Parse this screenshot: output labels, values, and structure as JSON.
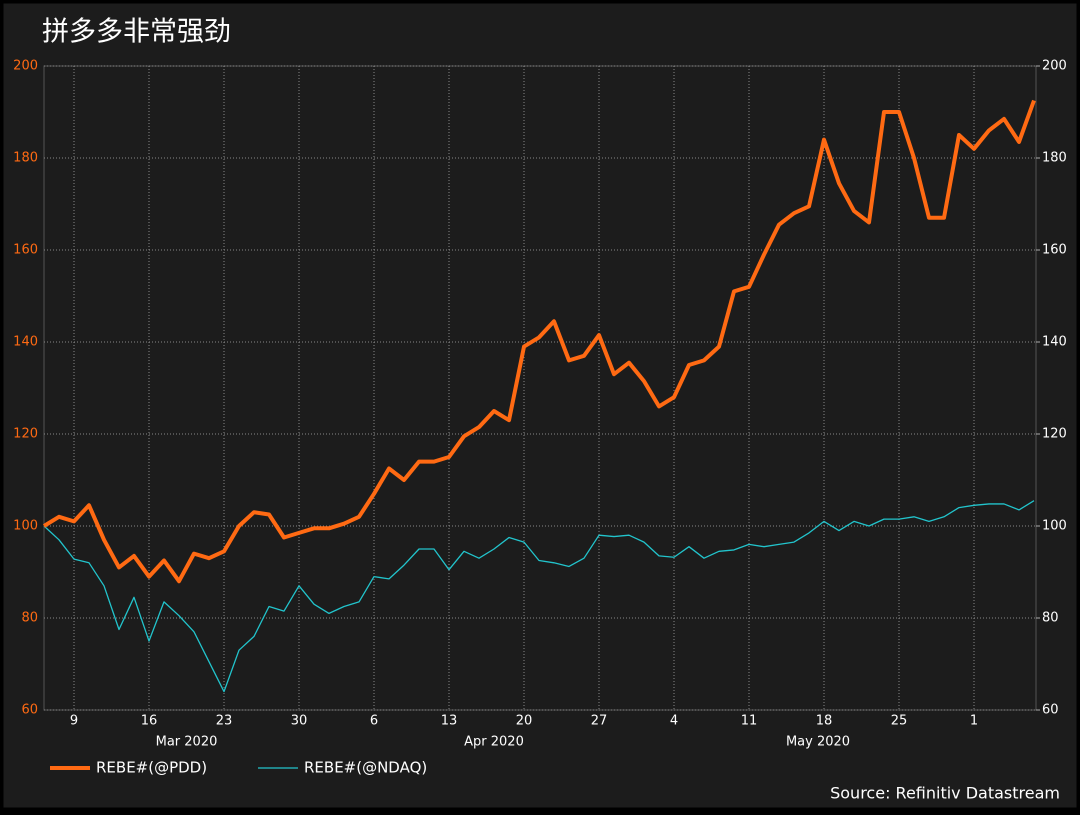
{
  "chart_data": {
    "type": "line",
    "title": "拼多多非常强劲",
    "source": "Source: Refinitiv Datastream",
    "categories": [
      null,
      null,
      "9",
      null,
      null,
      null,
      null,
      "16",
      null,
      null,
      null,
      null,
      "23",
      null,
      null,
      null,
      null,
      "30",
      null,
      null,
      null,
      null,
      "6",
      null,
      null,
      null,
      null,
      "13",
      null,
      null,
      null,
      null,
      "20",
      null,
      null,
      null,
      null,
      "27",
      null,
      null,
      null,
      null,
      "4",
      null,
      null,
      null,
      null,
      "11",
      null,
      null,
      null,
      null,
      "18",
      null,
      null,
      null,
      null,
      "25",
      null,
      null,
      null,
      null,
      "1",
      null,
      null,
      null,
      null
    ],
    "month_labels": [
      "Mar 2020",
      "Apr 2020",
      "May 2020"
    ],
    "series": [
      {
        "name": "REBE#(@PDD)",
        "color": "#ff6a13",
        "values": [
          100,
          102,
          101,
          104.5,
          97,
          91,
          93.5,
          89,
          92.5,
          88,
          94,
          93,
          94.5,
          100,
          103,
          102.5,
          97.5,
          98.5,
          99.5,
          99.5,
          100.5,
          102,
          107,
          112.5,
          110,
          114,
          114,
          115,
          119.5,
          121.5,
          125,
          123,
          139,
          141,
          144.5,
          136,
          137,
          141.5,
          133,
          135.5,
          131.5,
          126,
          128,
          135,
          136,
          139,
          151,
          152,
          159,
          165.5,
          168,
          169.5,
          184,
          174.5,
          168.5,
          166,
          190,
          190,
          180,
          167,
          167,
          185,
          182,
          186,
          188.5,
          183.5,
          192.5
        ]
      },
      {
        "name": "REBE#(@NDAQ)",
        "color": "#22c4cc",
        "values": [
          100,
          97,
          92.8,
          92,
          87,
          77.5,
          84.5,
          75,
          83.5,
          80.5,
          77,
          70.5,
          64,
          73,
          76,
          82.5,
          81.5,
          87,
          83,
          81,
          82.5,
          83.5,
          89,
          88.5,
          91.5,
          95,
          95,
          90.5,
          94.5,
          93,
          95,
          97.5,
          96.5,
          92.5,
          92,
          91.2,
          93,
          98,
          97.7,
          98,
          96.5,
          93.5,
          93.2,
          95.5,
          93,
          94.5,
          94.8,
          96,
          95.5,
          96,
          96.5,
          98.5,
          101,
          99,
          101,
          100,
          101.5,
          101.5,
          102,
          101,
          102,
          104,
          104.5,
          104.8,
          104.8,
          103.5,
          105.5
        ]
      }
    ],
    "ylim": [
      60,
      200
    ],
    "yticks": [
      60,
      80,
      100,
      120,
      140,
      160,
      180,
      200
    ],
    "y2lim": [
      60,
      200
    ],
    "y2ticks": [
      60,
      80,
      100,
      120,
      140,
      160,
      180,
      200
    ],
    "grid": true
  }
}
